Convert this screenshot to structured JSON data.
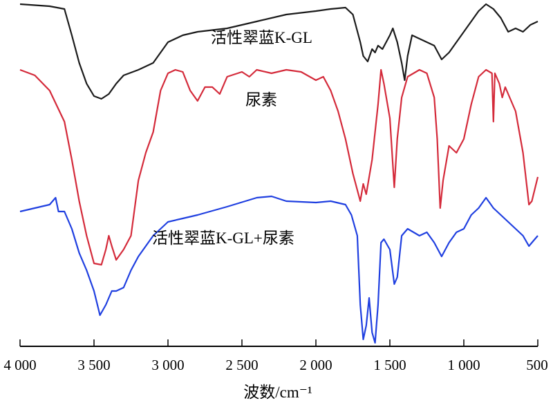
{
  "chart_data": {
    "type": "line",
    "title": "",
    "xlabel": "波数/cm⁻¹",
    "ylabel": "",
    "xlim": [
      4000,
      500
    ],
    "ylim": [
      0,
      100
    ],
    "y_units": "relative transmittance (a.u.)",
    "grid": false,
    "xticks": [
      4000,
      3500,
      3000,
      2500,
      2000,
      1500,
      1000,
      500
    ],
    "xtick_labels": [
      "4 000",
      "3 500",
      "3 000",
      "2 500",
      "2 000",
      "1 500",
      "1 000",
      "500"
    ],
    "series": [
      {
        "name": "活性翠蓝K-GL",
        "color": "#1a1a1a",
        "points": [
          [
            4000,
            99
          ],
          [
            3800,
            98.4
          ],
          [
            3700,
            97.6
          ],
          [
            3650,
            90
          ],
          [
            3600,
            82
          ],
          [
            3550,
            76
          ],
          [
            3500,
            72.4
          ],
          [
            3450,
            71.6
          ],
          [
            3400,
            73
          ],
          [
            3350,
            76
          ],
          [
            3300,
            78.4
          ],
          [
            3200,
            80
          ],
          [
            3100,
            82
          ],
          [
            3000,
            88
          ],
          [
            2900,
            90
          ],
          [
            2800,
            91
          ],
          [
            2600,
            92
          ],
          [
            2400,
            94
          ],
          [
            2200,
            96
          ],
          [
            2000,
            97
          ],
          [
            1900,
            97.6
          ],
          [
            1800,
            98
          ],
          [
            1750,
            96
          ],
          [
            1700,
            88
          ],
          [
            1680,
            84
          ],
          [
            1650,
            82.4
          ],
          [
            1620,
            86
          ],
          [
            1600,
            85
          ],
          [
            1580,
            87
          ],
          [
            1550,
            86
          ],
          [
            1500,
            90
          ],
          [
            1480,
            92
          ],
          [
            1450,
            88
          ],
          [
            1420,
            82
          ],
          [
            1400,
            77
          ],
          [
            1380,
            84
          ],
          [
            1350,
            90
          ],
          [
            1300,
            89
          ],
          [
            1250,
            88
          ],
          [
            1200,
            87
          ],
          [
            1150,
            83
          ],
          [
            1100,
            85
          ],
          [
            1050,
            88
          ],
          [
            1000,
            91
          ],
          [
            950,
            94
          ],
          [
            900,
            97
          ],
          [
            850,
            99
          ],
          [
            800,
            97.6
          ],
          [
            750,
            95
          ],
          [
            700,
            91
          ],
          [
            650,
            92
          ],
          [
            600,
            91
          ],
          [
            550,
            93
          ],
          [
            500,
            94
          ]
        ]
      },
      {
        "name": "尿素",
        "color": "#d42a3a",
        "points": [
          [
            4000,
            80
          ],
          [
            3900,
            78.4
          ],
          [
            3800,
            74
          ],
          [
            3700,
            65
          ],
          [
            3650,
            54
          ],
          [
            3600,
            42
          ],
          [
            3550,
            32
          ],
          [
            3500,
            24
          ],
          [
            3450,
            23.6
          ],
          [
            3420,
            28
          ],
          [
            3400,
            32
          ],
          [
            3380,
            29
          ],
          [
            3350,
            25
          ],
          [
            3300,
            28
          ],
          [
            3250,
            32
          ],
          [
            3200,
            48
          ],
          [
            3150,
            56
          ],
          [
            3100,
            62
          ],
          [
            3050,
            74
          ],
          [
            3000,
            79
          ],
          [
            2950,
            80
          ],
          [
            2900,
            79.4
          ],
          [
            2850,
            74
          ],
          [
            2800,
            71
          ],
          [
            2750,
            75
          ],
          [
            2700,
            75
          ],
          [
            2650,
            73
          ],
          [
            2600,
            78
          ],
          [
            2500,
            79.4
          ],
          [
            2450,
            78
          ],
          [
            2400,
            80
          ],
          [
            2300,
            79
          ],
          [
            2200,
            80
          ],
          [
            2100,
            79.4
          ],
          [
            2000,
            77
          ],
          [
            1950,
            78
          ],
          [
            1900,
            74
          ],
          [
            1850,
            68
          ],
          [
            1800,
            60
          ],
          [
            1750,
            50
          ],
          [
            1700,
            42
          ],
          [
            1680,
            47
          ],
          [
            1660,
            44
          ],
          [
            1620,
            54
          ],
          [
            1580,
            70
          ],
          [
            1560,
            80
          ],
          [
            1540,
            76
          ],
          [
            1500,
            66
          ],
          [
            1470,
            46
          ],
          [
            1450,
            60
          ],
          [
            1420,
            72
          ],
          [
            1380,
            78
          ],
          [
            1300,
            80
          ],
          [
            1250,
            79
          ],
          [
            1200,
            72
          ],
          [
            1180,
            60
          ],
          [
            1160,
            40
          ],
          [
            1140,
            48
          ],
          [
            1100,
            58
          ],
          [
            1050,
            56
          ],
          [
            1000,
            60
          ],
          [
            950,
            70
          ],
          [
            900,
            78
          ],
          [
            850,
            80
          ],
          [
            810,
            79
          ],
          [
            800,
            65
          ],
          [
            790,
            79
          ],
          [
            760,
            76
          ],
          [
            740,
            72
          ],
          [
            720,
            75
          ],
          [
            700,
            73
          ],
          [
            650,
            68
          ],
          [
            600,
            56
          ],
          [
            560,
            41
          ],
          [
            540,
            42
          ],
          [
            500,
            49
          ]
        ]
      },
      {
        "name": "活性翠蓝K-GL+尿素",
        "color": "#1f3fe0",
        "points": [
          [
            4000,
            39
          ],
          [
            3900,
            40
          ],
          [
            3800,
            41
          ],
          [
            3760,
            43
          ],
          [
            3740,
            39
          ],
          [
            3700,
            39
          ],
          [
            3650,
            34
          ],
          [
            3600,
            27
          ],
          [
            3550,
            22
          ],
          [
            3500,
            16
          ],
          [
            3460,
            9
          ],
          [
            3420,
            12
          ],
          [
            3380,
            16
          ],
          [
            3350,
            16
          ],
          [
            3300,
            17
          ],
          [
            3250,
            22
          ],
          [
            3200,
            26
          ],
          [
            3100,
            32
          ],
          [
            3000,
            36
          ],
          [
            2900,
            37
          ],
          [
            2800,
            38
          ],
          [
            2600,
            40.4
          ],
          [
            2400,
            43
          ],
          [
            2300,
            43.4
          ],
          [
            2200,
            42
          ],
          [
            2000,
            41.6
          ],
          [
            1900,
            42
          ],
          [
            1800,
            41
          ],
          [
            1760,
            38
          ],
          [
            1720,
            32
          ],
          [
            1700,
            12
          ],
          [
            1680,
            2
          ],
          [
            1660,
            6
          ],
          [
            1640,
            14
          ],
          [
            1620,
            4
          ],
          [
            1600,
            1
          ],
          [
            1580,
            12
          ],
          [
            1560,
            30
          ],
          [
            1540,
            31
          ],
          [
            1500,
            28
          ],
          [
            1470,
            18
          ],
          [
            1450,
            20
          ],
          [
            1420,
            32
          ],
          [
            1380,
            34
          ],
          [
            1300,
            32
          ],
          [
            1250,
            33
          ],
          [
            1200,
            30
          ],
          [
            1150,
            26
          ],
          [
            1100,
            30
          ],
          [
            1050,
            33
          ],
          [
            1000,
            34
          ],
          [
            950,
            38
          ],
          [
            900,
            40
          ],
          [
            850,
            43
          ],
          [
            800,
            40
          ],
          [
            750,
            38
          ],
          [
            700,
            36
          ],
          [
            650,
            34
          ],
          [
            600,
            32
          ],
          [
            560,
            29
          ],
          [
            520,
            31
          ],
          [
            500,
            32
          ]
        ]
      }
    ]
  }
}
